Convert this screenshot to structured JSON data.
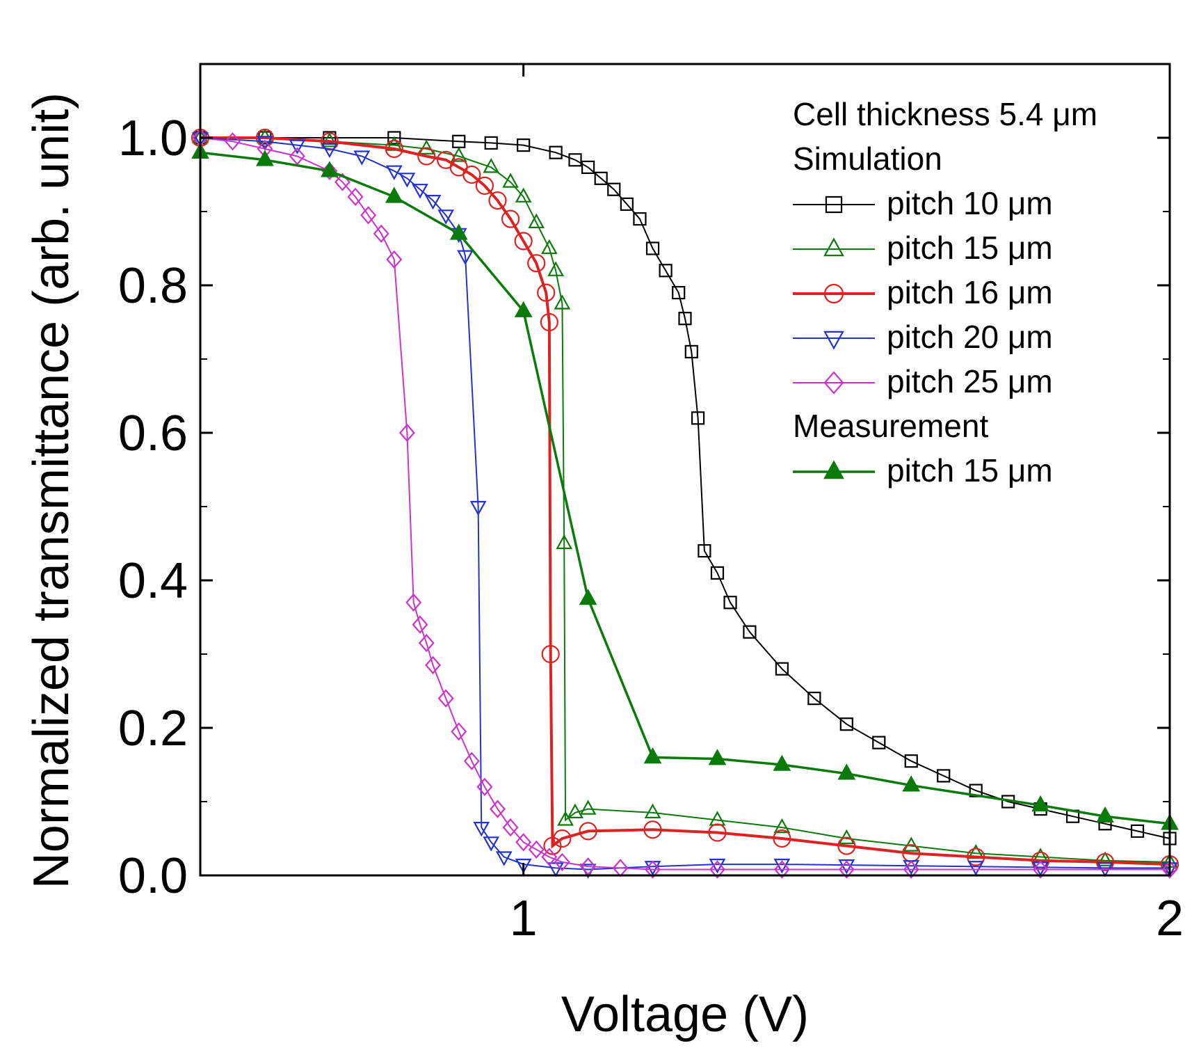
{
  "chart_data": {
    "type": "line",
    "title": "",
    "xlabel": "Voltage (V)",
    "ylabel": "Normalized transmittance (arb. unit)",
    "xlim": [
      0.5,
      2.0
    ],
    "ylim": [
      0.0,
      1.1
    ],
    "xticks": [
      {
        "value": 1,
        "label": "1"
      },
      {
        "value": 2,
        "label": "2"
      }
    ],
    "yticks": [
      {
        "value": 0.0,
        "label": "0.0"
      },
      {
        "value": 0.2,
        "label": "0.2"
      },
      {
        "value": 0.4,
        "label": "0.4"
      },
      {
        "value": 0.6,
        "label": "0.6"
      },
      {
        "value": 0.8,
        "label": "0.8"
      },
      {
        "value": 1.0,
        "label": "1.0"
      }
    ],
    "grid": false,
    "legend": {
      "placement": "top-right",
      "headings": {
        "cell": "Cell thickness 5.4 μm",
        "simulation": "Simulation",
        "measurement": "Measurement"
      }
    },
    "series": [
      {
        "name": "pitch 10 μm",
        "group": "simulation",
        "marker": "square",
        "color": "#000000",
        "filled": false,
        "x": [
          0.5,
          0.6,
          0.7,
          0.8,
          0.9,
          0.95,
          1.0,
          1.05,
          1.08,
          1.1,
          1.12,
          1.14,
          1.16,
          1.18,
          1.2,
          1.22,
          1.24,
          1.25,
          1.26,
          1.27,
          1.28,
          1.3,
          1.32,
          1.35,
          1.4,
          1.45,
          1.5,
          1.55,
          1.6,
          1.65,
          1.7,
          1.75,
          1.8,
          1.85,
          1.9,
          1.95,
          2.0
        ],
        "y": [
          1.0,
          1.0,
          1.0,
          1.0,
          0.995,
          0.993,
          0.99,
          0.98,
          0.97,
          0.96,
          0.945,
          0.93,
          0.91,
          0.89,
          0.85,
          0.82,
          0.79,
          0.755,
          0.71,
          0.62,
          0.44,
          0.41,
          0.37,
          0.33,
          0.28,
          0.24,
          0.205,
          0.18,
          0.155,
          0.135,
          0.115,
          0.1,
          0.09,
          0.08,
          0.07,
          0.06,
          0.05
        ]
      },
      {
        "name": "pitch 15 μm",
        "group": "simulation",
        "marker": "triangle-up",
        "color": "#0a7a0a",
        "filled": false,
        "x": [
          0.5,
          0.6,
          0.7,
          0.8,
          0.85,
          0.9,
          0.95,
          0.98,
          1.0,
          1.02,
          1.04,
          1.05,
          1.06,
          1.063,
          1.065,
          1.08,
          1.1,
          1.2,
          1.3,
          1.4,
          1.5,
          1.6,
          1.7,
          1.8,
          1.9,
          2.0
        ],
        "y": [
          1.0,
          1.0,
          0.995,
          0.99,
          0.985,
          0.975,
          0.96,
          0.94,
          0.92,
          0.885,
          0.85,
          0.82,
          0.775,
          0.45,
          0.075,
          0.085,
          0.09,
          0.085,
          0.075,
          0.065,
          0.05,
          0.04,
          0.03,
          0.025,
          0.02,
          0.018
        ]
      },
      {
        "name": "pitch 16 μm",
        "group": "simulation",
        "marker": "circle",
        "color": "#dd2222",
        "filled": false,
        "x": [
          0.5,
          0.6,
          0.7,
          0.8,
          0.85,
          0.88,
          0.9,
          0.92,
          0.94,
          0.96,
          0.98,
          1.0,
          1.02,
          1.035,
          1.04,
          1.042,
          1.045,
          1.06,
          1.1,
          1.2,
          1.3,
          1.4,
          1.5,
          1.6,
          1.7,
          1.8,
          1.9,
          2.0
        ],
        "y": [
          1.0,
          1.0,
          0.995,
          0.985,
          0.975,
          0.97,
          0.96,
          0.95,
          0.935,
          0.915,
          0.89,
          0.86,
          0.83,
          0.79,
          0.75,
          0.3,
          0.04,
          0.05,
          0.06,
          0.062,
          0.058,
          0.05,
          0.04,
          0.03,
          0.025,
          0.02,
          0.018,
          0.015
        ]
      },
      {
        "name": "pitch 20 μm",
        "group": "simulation",
        "marker": "triangle-down",
        "color": "#2233cc",
        "filled": false,
        "x": [
          0.5,
          0.6,
          0.65,
          0.7,
          0.75,
          0.8,
          0.82,
          0.84,
          0.86,
          0.88,
          0.9,
          0.91,
          0.93,
          0.935,
          0.95,
          0.97,
          1.0,
          1.05,
          1.1,
          1.2,
          1.3,
          1.4,
          1.5,
          1.6,
          1.7,
          1.8,
          1.9,
          2.0
        ],
        "y": [
          1.0,
          0.995,
          0.99,
          0.985,
          0.975,
          0.955,
          0.945,
          0.93,
          0.915,
          0.895,
          0.87,
          0.84,
          0.5,
          0.065,
          0.045,
          0.025,
          0.015,
          0.01,
          0.008,
          0.012,
          0.015,
          0.015,
          0.014,
          0.013,
          0.012,
          0.011,
          0.01,
          0.01
        ]
      },
      {
        "name": "pitch 25 μm",
        "group": "simulation",
        "marker": "diamond",
        "color": "#cc33cc",
        "filled": false,
        "x": [
          0.5,
          0.55,
          0.6,
          0.65,
          0.7,
          0.72,
          0.74,
          0.76,
          0.78,
          0.8,
          0.82,
          0.83,
          0.84,
          0.85,
          0.86,
          0.88,
          0.9,
          0.92,
          0.94,
          0.96,
          0.98,
          1.0,
          1.02,
          1.04,
          1.06,
          1.1,
          1.15,
          1.2,
          1.3,
          1.4,
          1.5,
          1.6,
          1.8,
          2.0
        ],
        "y": [
          1.0,
          0.995,
          0.985,
          0.975,
          0.955,
          0.94,
          0.92,
          0.895,
          0.87,
          0.835,
          0.6,
          0.37,
          0.34,
          0.315,
          0.285,
          0.24,
          0.195,
          0.155,
          0.12,
          0.09,
          0.065,
          0.045,
          0.035,
          0.025,
          0.018,
          0.012,
          0.01,
          0.008,
          0.008,
          0.008,
          0.008,
          0.008,
          0.008,
          0.008
        ]
      },
      {
        "name": "pitch 15 μm",
        "group": "measurement",
        "marker": "triangle-up",
        "color": "#0a7a0a",
        "filled": true,
        "x": [
          0.5,
          0.6,
          0.7,
          0.8,
          0.9,
          1.0,
          1.1,
          1.2,
          1.3,
          1.4,
          1.5,
          1.6,
          1.8,
          1.9,
          2.0
        ],
        "y": [
          0.98,
          0.97,
          0.955,
          0.92,
          0.87,
          0.765,
          0.375,
          0.16,
          0.158,
          0.15,
          0.138,
          0.122,
          0.095,
          0.08,
          0.07
        ]
      }
    ]
  }
}
